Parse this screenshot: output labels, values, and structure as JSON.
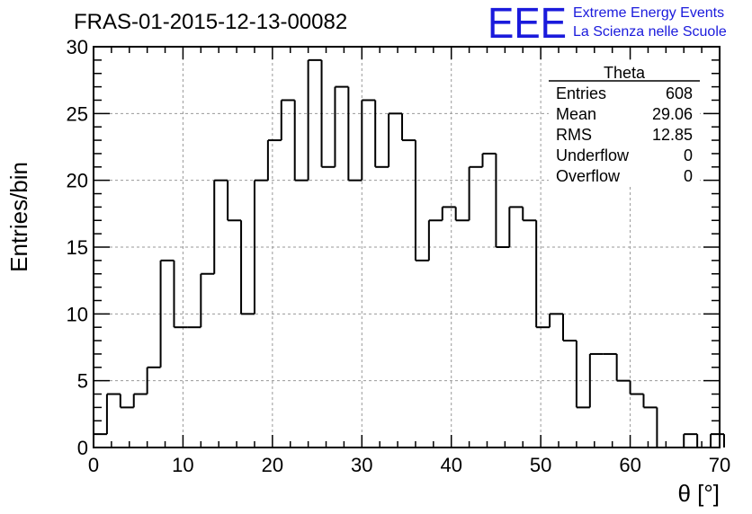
{
  "chart_data": {
    "type": "bar",
    "title": "FRAS-01-2015-12-13-00082",
    "xlabel": "θ [°]",
    "ylabel": "Entries/bin",
    "xlim": [
      0,
      70
    ],
    "ylim": [
      0,
      30
    ],
    "bin_width": 1.5,
    "x_start": 0,
    "xticks": [
      0,
      10,
      20,
      30,
      40,
      50,
      60,
      70
    ],
    "yticks": [
      0,
      5,
      10,
      15,
      20,
      25,
      30
    ],
    "grid": true,
    "values": [
      1,
      4,
      3,
      4,
      6,
      14,
      9,
      9,
      13,
      20,
      17,
      10,
      20,
      23,
      26,
      20,
      29,
      21,
      27,
      20,
      26,
      21,
      25,
      23,
      14,
      17,
      18,
      17,
      21,
      22,
      15,
      18,
      17,
      9,
      10,
      8,
      3,
      7,
      7,
      5,
      4,
      3,
      0,
      0,
      1,
      0,
      1,
      0,
      0,
      0
    ],
    "stats": {
      "name": "Theta",
      "rows": [
        {
          "label": "Entries",
          "value": "608"
        },
        {
          "label": "Mean",
          "value": "29.06"
        },
        {
          "label": "RMS",
          "value": "12.85"
        },
        {
          "label": "Underflow",
          "value": "0"
        },
        {
          "label": "Overflow",
          "value": "0"
        }
      ]
    },
    "colors": {
      "line": "#000000",
      "grid": "#999999",
      "logo": "#1a1adc"
    }
  },
  "logo": {
    "mark": "EEE",
    "line1": "Extreme Energy Events",
    "line2": "La Scienza nelle Scuole"
  }
}
